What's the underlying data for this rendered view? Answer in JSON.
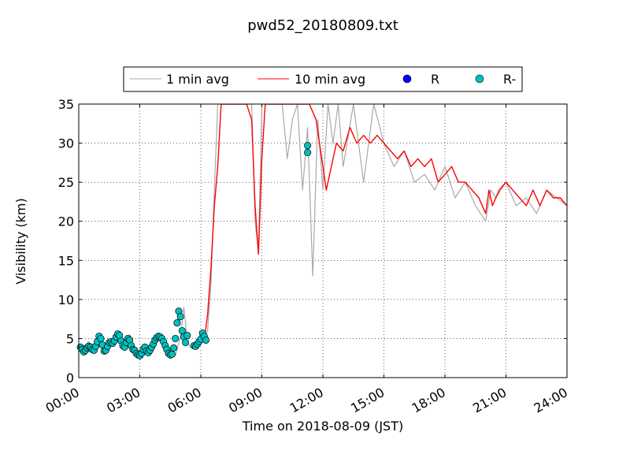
{
  "chart_data": {
    "type": "line",
    "title": "pwd52_20180809.txt",
    "xlabel": "Time on 2018-08-09 (JST)",
    "ylabel": "Visibility (km)",
    "xlim": [
      "00:00",
      "24:00"
    ],
    "ylim": [
      0,
      35
    ],
    "grid": true,
    "legend_position": "top-center, above plot",
    "x_ticks": [
      "00:00",
      "03:00",
      "06:00",
      "09:00",
      "12:00",
      "15:00",
      "18:00",
      "21:00",
      "24:00"
    ],
    "y_ticks": [
      "0",
      "5",
      "10",
      "15",
      "20",
      "25",
      "30",
      "35"
    ],
    "legend": [
      "1 min avg",
      "10 min avg",
      "R",
      "R-"
    ],
    "series": [
      {
        "name": "1 min avg",
        "kind": "line",
        "color": "#a9a9a9",
        "x": [
          "00:00",
          "00:30",
          "00:45",
          "01:00",
          "01:15",
          "01:30",
          "01:45",
          "02:00",
          "02:15",
          "02:30",
          "02:45",
          "03:00",
          "03:15",
          "03:30",
          "03:45",
          "04:00",
          "04:15",
          "04:30",
          "04:45",
          "05:00",
          "05:10",
          "05:20",
          "05:30",
          "05:45",
          "06:00",
          "06:10",
          "06:20",
          "06:30",
          "06:40",
          "06:50",
          "07:00",
          "07:10",
          "07:20",
          "07:30",
          "07:40",
          "07:50",
          "08:00",
          "08:30",
          "08:40",
          "08:50",
          "09:00",
          "09:10",
          "09:20",
          "09:30",
          "10:00",
          "10:15",
          "10:30",
          "10:45",
          "11:00",
          "11:15",
          "11:30",
          "11:45",
          "12:00",
          "12:15",
          "12:30",
          "12:45",
          "13:00",
          "13:30",
          "14:00",
          "14:30",
          "15:00",
          "15:30",
          "16:00",
          "16:30",
          "17:00",
          "17:30",
          "18:00",
          "18:30",
          "19:00",
          "19:30",
          "20:00",
          "20:15",
          "20:30",
          "21:00",
          "21:30",
          "22:00",
          "22:30",
          "23:00",
          "23:30",
          "24:00"
        ],
        "y": [
          3.5,
          4.6,
          3.4,
          5.6,
          3.2,
          4.9,
          4.5,
          5.2,
          4.1,
          5.5,
          3.4,
          2.6,
          3.9,
          2.9,
          4.8,
          5.1,
          4.6,
          3.2,
          2.8,
          5.2,
          9.0,
          4.7,
          3.8,
          4.2,
          5.8,
          4.5,
          6.0,
          12.0,
          24.0,
          35,
          35,
          35,
          35,
          35,
          35,
          35,
          35,
          35,
          20.0,
          16.0,
          35,
          35,
          35,
          35,
          35,
          28.0,
          33.0,
          35,
          24.0,
          32.0,
          13.0,
          33.0,
          24.0,
          35,
          30.0,
          35,
          27.0,
          35,
          25.0,
          35,
          30.0,
          27.0,
          29.0,
          25.0,
          26.0,
          24.0,
          27.0,
          23.0,
          25.0,
          22.0,
          20.0,
          24.0,
          23.0,
          25.0,
          22.0,
          23.0,
          21.0,
          24.0,
          23.0,
          22.0
        ]
      },
      {
        "name": "10 min avg",
        "kind": "line",
        "color": "#ff0000",
        "x": [
          "06:10",
          "06:20",
          "06:30",
          "06:40",
          "06:50",
          "07:00",
          "07:10",
          "07:20",
          "07:30",
          "07:45",
          "08:00",
          "08:15",
          "08:30",
          "08:40",
          "08:50",
          "09:00",
          "09:10",
          "09:20",
          "09:40",
          "10:00",
          "10:30",
          "11:00",
          "11:20",
          "11:40",
          "12:00",
          "12:10",
          "12:20",
          "12:40",
          "13:00",
          "13:20",
          "13:40",
          "14:00",
          "14:20",
          "14:40",
          "15:00",
          "15:20",
          "15:40",
          "16:00",
          "16:20",
          "16:40",
          "17:00",
          "17:20",
          "17:40",
          "18:00",
          "18:20",
          "18:40",
          "19:00",
          "19:20",
          "19:40",
          "20:00",
          "20:10",
          "20:20",
          "20:40",
          "21:00",
          "21:20",
          "21:40",
          "22:00",
          "22:20",
          "22:40",
          "23:00",
          "23:20",
          "23:40",
          "24:00"
        ],
        "y": [
          4.8,
          8.0,
          14.0,
          22.0,
          27.0,
          35,
          35,
          35,
          35,
          35,
          35,
          35,
          33.0,
          22.0,
          15.8,
          28.0,
          35,
          35,
          35,
          35,
          35,
          35,
          35,
          33.0,
          27.0,
          24.0,
          26.0,
          30.0,
          29.0,
          32.0,
          30.0,
          31.0,
          30.0,
          31.0,
          30.0,
          29.0,
          28.0,
          29.0,
          27.0,
          28.0,
          27.0,
          28.0,
          25.0,
          26.0,
          27.0,
          25.0,
          25.0,
          24.0,
          23.0,
          21.0,
          24.0,
          22.0,
          24.0,
          25.0,
          24.0,
          23.0,
          22.0,
          24.0,
          22.0,
          24.0,
          23.0,
          23.0,
          22.0
        ]
      },
      {
        "name": "R",
        "kind": "scatter",
        "color": "#0000ff",
        "x": [],
        "y": []
      },
      {
        "name": "R-",
        "kind": "scatter",
        "color": "#00c0c0",
        "x": [
          "00:05",
          "00:10",
          "00:15",
          "00:20",
          "00:25",
          "00:30",
          "00:35",
          "00:40",
          "00:45",
          "00:50",
          "00:55",
          "01:00",
          "01:05",
          "01:10",
          "01:15",
          "01:20",
          "01:25",
          "01:30",
          "01:35",
          "01:40",
          "01:45",
          "01:50",
          "01:55",
          "02:00",
          "02:05",
          "02:10",
          "02:15",
          "02:20",
          "02:25",
          "02:30",
          "02:35",
          "02:40",
          "02:45",
          "02:50",
          "02:55",
          "03:00",
          "03:05",
          "03:10",
          "03:15",
          "03:20",
          "03:25",
          "03:30",
          "03:35",
          "03:40",
          "03:45",
          "03:50",
          "03:55",
          "04:00",
          "04:05",
          "04:10",
          "04:15",
          "04:20",
          "04:25",
          "04:30",
          "04:35",
          "04:40",
          "04:45",
          "04:50",
          "04:55",
          "05:00",
          "05:05",
          "05:10",
          "05:15",
          "05:20",
          "05:40",
          "05:45",
          "05:50",
          "05:55",
          "06:00",
          "06:05",
          "06:10",
          "06:15",
          "11:15",
          "11:15"
        ],
        "y": [
          3.9,
          3.6,
          3.3,
          3.5,
          3.8,
          4.0,
          3.9,
          3.6,
          3.5,
          4.0,
          4.6,
          5.3,
          5.0,
          4.2,
          3.4,
          3.5,
          4.0,
          4.5,
          4.6,
          4.4,
          4.7,
          5.2,
          5.6,
          5.4,
          4.7,
          4.1,
          3.9,
          4.5,
          5.0,
          4.8,
          4.1,
          3.6,
          3.5,
          3.1,
          2.9,
          2.8,
          3.1,
          3.6,
          3.9,
          3.4,
          3.2,
          3.5,
          3.9,
          4.3,
          4.8,
          5.1,
          5.3,
          5.2,
          5.0,
          4.6,
          4.1,
          3.6,
          3.1,
          2.9,
          3.0,
          3.8,
          5.0,
          7.0,
          8.5,
          7.8,
          6.0,
          5.2,
          4.5,
          5.4,
          4.1,
          4.0,
          4.3,
          4.6,
          4.9,
          5.7,
          5.3,
          4.8,
          29.7,
          28.8
        ]
      }
    ]
  }
}
